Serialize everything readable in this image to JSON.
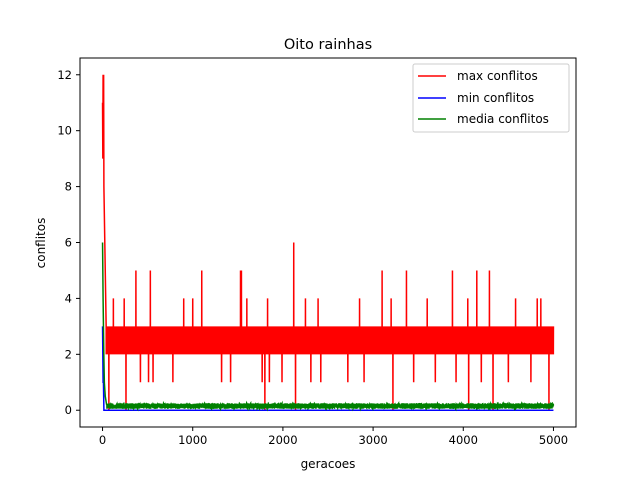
{
  "chart_data": {
    "type": "line",
    "title": "Oito rainhas",
    "xlabel": "geracoes",
    "ylabel": "conflitos",
    "xlim": [
      -250,
      5250
    ],
    "ylim": [
      -0.6,
      12.6
    ],
    "xticks": [
      0,
      1000,
      2000,
      3000,
      4000,
      5000
    ],
    "yticks": [
      0,
      2,
      4,
      6,
      8,
      10,
      12
    ],
    "grid": false,
    "legend_position": "top-right",
    "generations": 5000,
    "series": [
      {
        "name": "max conflitos",
        "color": "#ff0000",
        "initial": [
          [
            0,
            11
          ],
          [
            3,
            9
          ],
          [
            6,
            12
          ],
          [
            9,
            10
          ],
          [
            12,
            12
          ],
          [
            15,
            8
          ],
          [
            20,
            7
          ],
          [
            25,
            6
          ],
          [
            30,
            5
          ],
          [
            35,
            4
          ],
          [
            40,
            3
          ]
        ],
        "steady_low": 2,
        "steady_high": 3,
        "spikes": [
          [
            120,
            4
          ],
          [
            240,
            4
          ],
          [
            370,
            5
          ],
          [
            530,
            5
          ],
          [
            900,
            4
          ],
          [
            1000,
            4
          ],
          [
            1100,
            5
          ],
          [
            1530,
            5
          ],
          [
            1540,
            5
          ],
          [
            1600,
            4
          ],
          [
            1830,
            4
          ],
          [
            2120,
            6
          ],
          [
            2250,
            4
          ],
          [
            2390,
            4
          ],
          [
            2850,
            4
          ],
          [
            3100,
            5
          ],
          [
            3200,
            4
          ],
          [
            3370,
            5
          ],
          [
            3600,
            4
          ],
          [
            3880,
            5
          ],
          [
            4050,
            4
          ],
          [
            4150,
            5
          ],
          [
            4290,
            5
          ],
          [
            4580,
            4
          ],
          [
            4820,
            4
          ],
          [
            4860,
            4
          ]
        ],
        "dips": [
          [
            70,
            0
          ],
          [
            260,
            0
          ],
          [
            420,
            1
          ],
          [
            510,
            1
          ],
          [
            560,
            1
          ],
          [
            780,
            1
          ],
          [
            1320,
            1
          ],
          [
            1420,
            1
          ],
          [
            1770,
            1
          ],
          [
            1800,
            0
          ],
          [
            1850,
            1
          ],
          [
            1990,
            1
          ],
          [
            2140,
            0
          ],
          [
            2310,
            1
          ],
          [
            2420,
            1
          ],
          [
            2720,
            1
          ],
          [
            2900,
            1
          ],
          [
            3220,
            0
          ],
          [
            3450,
            1
          ],
          [
            3690,
            1
          ],
          [
            3920,
            1
          ],
          [
            4060,
            0
          ],
          [
            4200,
            1
          ],
          [
            4330,
            0
          ],
          [
            4500,
            1
          ],
          [
            4750,
            1
          ],
          [
            4950,
            0
          ]
        ]
      },
      {
        "name": "min conflitos",
        "color": "#0000ff",
        "initial": [
          [
            0,
            3
          ],
          [
            3,
            2
          ],
          [
            6,
            1
          ],
          [
            10,
            1
          ],
          [
            15,
            0
          ]
        ],
        "steady_low": 0,
        "steady_high": 0
      },
      {
        "name": "media conflitos",
        "color": "#008000",
        "initial": [
          [
            0,
            6
          ],
          [
            3,
            5
          ],
          [
            6,
            4
          ],
          [
            10,
            3
          ],
          [
            14,
            2
          ],
          [
            20,
            1
          ],
          [
            30,
            0.5
          ],
          [
            45,
            0.2
          ]
        ],
        "steady_low": 0.05,
        "steady_high": 0.25
      }
    ]
  }
}
